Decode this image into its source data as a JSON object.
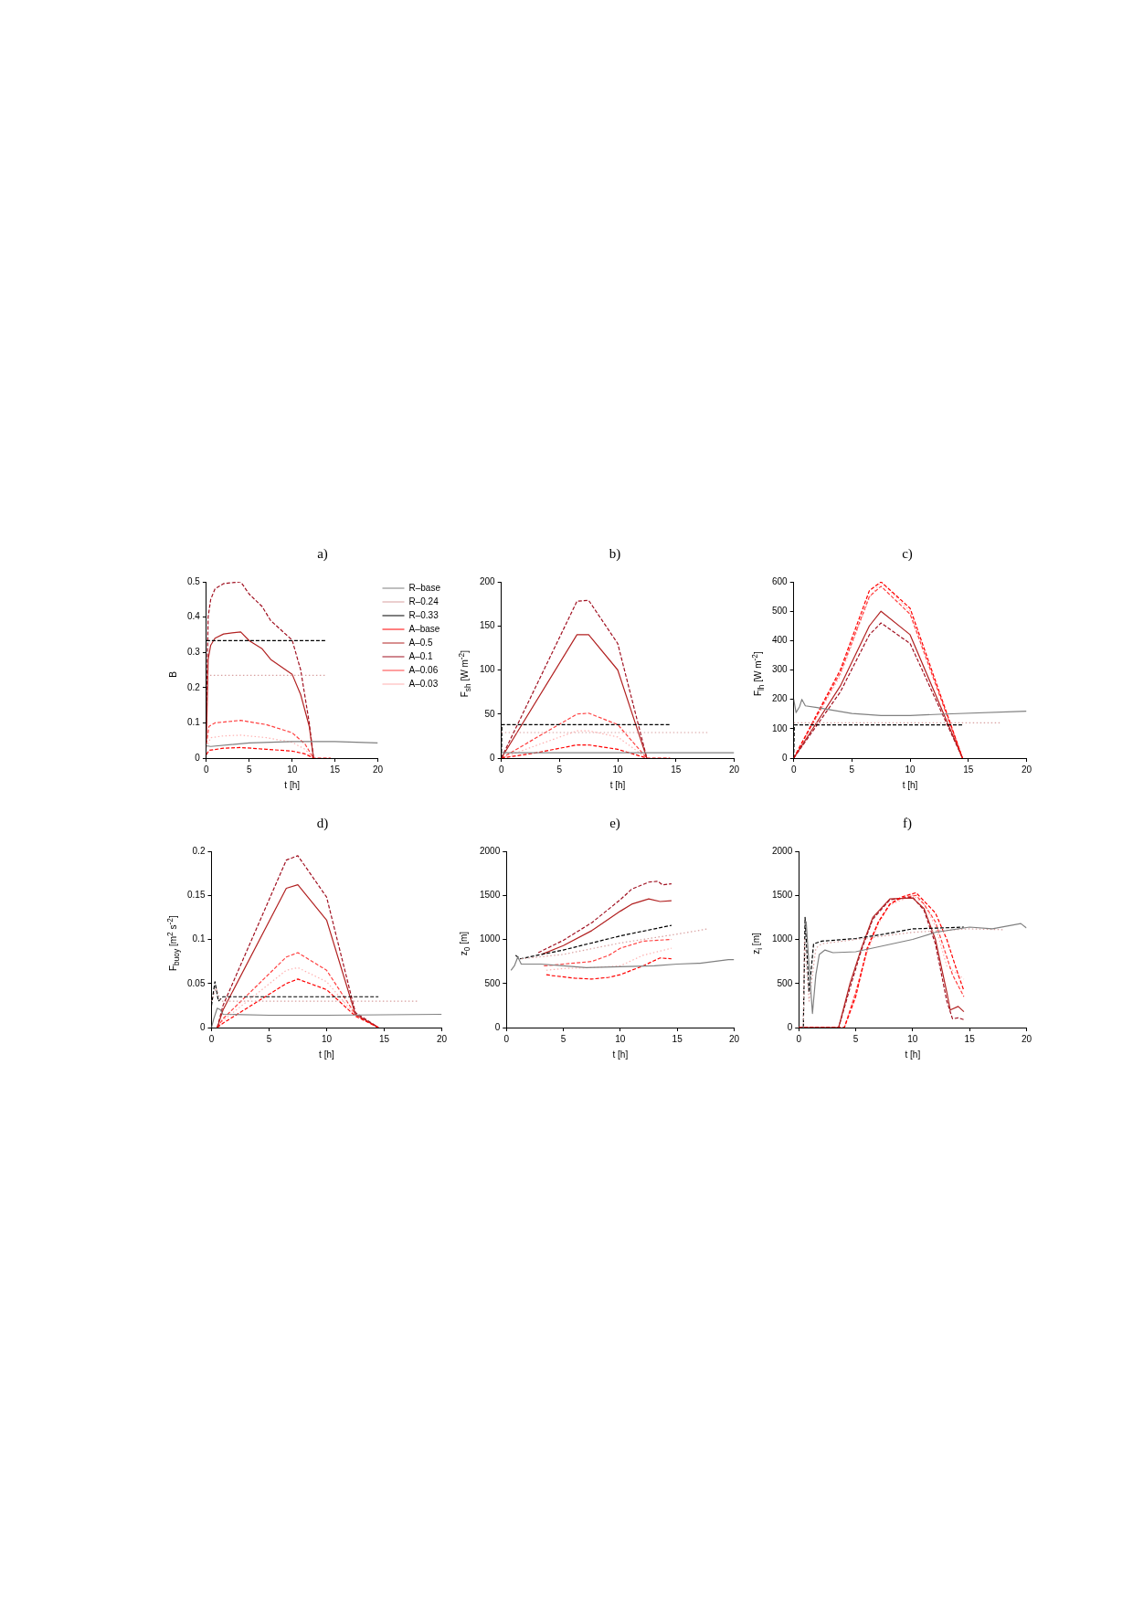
{
  "chart_data": [
    {
      "type": "line",
      "title": "a)",
      "xlabel": "t [h]",
      "ylabel": "B",
      "xlim": [
        0,
        20
      ],
      "xticks": [
        0,
        5,
        10,
        15,
        20
      ],
      "ylim": [
        0,
        0.5
      ],
      "yticks": [
        0,
        0.1,
        0.2,
        0.3,
        0.4,
        0.5
      ],
      "legend": "top right",
      "series": [
        {
          "name": "R–base",
          "color": "#808080",
          "line_style": "solid",
          "x": [
            0,
            0.5,
            5,
            10,
            15,
            20
          ],
          "values": [
            0.035,
            0.033,
            0.043,
            0.047,
            0.047,
            0.043
          ]
        },
        {
          "name": "R–0.24",
          "color": "#d8a0a0",
          "line_style": "dotted",
          "x": [
            0,
            14
          ],
          "values": [
            0.235,
            0.235
          ]
        },
        {
          "name": "R–0.33",
          "color": "#000000",
          "line_style": "dashed",
          "x": [
            0,
            14
          ],
          "values": [
            0.333,
            0.333
          ]
        },
        {
          "name": "A–base",
          "color": "#ff0000",
          "line_style": "dashed",
          "x": [
            0,
            0.3,
            2,
            4,
            7,
            10,
            11.5,
            12.5,
            14.5
          ],
          "values": [
            0.01,
            0.022,
            0.028,
            0.03,
            0.025,
            0.02,
            0.012,
            0,
            0
          ]
        },
        {
          "name": "A–0.5",
          "color": "#b22222",
          "line_style": "solid",
          "x": [
            0,
            0.2,
            0.5,
            1,
            2,
            4,
            5,
            6.5,
            7.5,
            10,
            11,
            12,
            12.5
          ],
          "values": [
            0.05,
            0.28,
            0.32,
            0.34,
            0.352,
            0.358,
            0.333,
            0.31,
            0.28,
            0.238,
            0.18,
            0.09,
            0
          ]
        },
        {
          "name": "A–0.1",
          "color": "#a01020",
          "line_style": "dashed",
          "x": [
            0,
            0.2,
            0.5,
            1,
            2,
            4,
            5,
            6.5,
            7.5,
            10,
            11,
            12,
            12.5
          ],
          "values": [
            0.1,
            0.4,
            0.45,
            0.48,
            0.495,
            0.5,
            0.465,
            0.43,
            0.39,
            0.335,
            0.25,
            0.1,
            0
          ]
        },
        {
          "name": "A–0.06",
          "color": "#ff4040",
          "line_style": "dashed",
          "x": [
            0,
            0.3,
            1,
            4,
            7,
            10,
            11.5,
            12.5
          ],
          "values": [
            0.04,
            0.09,
            0.1,
            0.107,
            0.095,
            0.072,
            0.04,
            0
          ]
        },
        {
          "name": "A–0.03",
          "color": "#ffb0b0",
          "line_style": "dotted",
          "x": [
            0,
            0.5,
            2,
            4,
            7,
            10,
            11.5,
            12.5
          ],
          "values": [
            0.03,
            0.058,
            0.063,
            0.065,
            0.058,
            0.045,
            0.025,
            0
          ]
        }
      ]
    },
    {
      "type": "line",
      "title": "b)",
      "xlabel": "t [h]",
      "ylabel": "F$_{sh}$  [W m$^{-2}$]",
      "xlim": [
        0,
        20
      ],
      "xticks": [
        0,
        5,
        10,
        15,
        20
      ],
      "ylim": [
        0,
        200
      ],
      "yticks": [
        0,
        50,
        100,
        150,
        200
      ],
      "series": [
        {
          "color": "#808080",
          "line_style": "solid",
          "x": [
            0,
            20
          ],
          "values": [
            6,
            6
          ]
        },
        {
          "color": "#d8a0a0",
          "line_style": "dotted",
          "x": [
            0,
            17.7
          ],
          "values": [
            29,
            29
          ]
        },
        {
          "color": "#000000",
          "line_style": "dashed",
          "x": [
            0,
            0.05,
            14.5
          ],
          "values": [
            0,
            38,
            38
          ]
        },
        {
          "color": "#ff0000",
          "line_style": "dashed",
          "x": [
            0,
            3,
            6.5,
            7.5,
            10,
            12.5,
            14.5
          ],
          "values": [
            0,
            6,
            15,
            15,
            10,
            0,
            0
          ]
        },
        {
          "color": "#b22222",
          "line_style": "solid",
          "x": [
            0,
            6.5,
            7.5,
            10,
            12.5
          ],
          "values": [
            0,
            140,
            140,
            100,
            0
          ]
        },
        {
          "color": "#a01020",
          "line_style": "dashed",
          "x": [
            0,
            6.5,
            7.5,
            10,
            12.5
          ],
          "values": [
            0,
            178,
            179,
            130,
            0
          ]
        },
        {
          "color": "#ff4040",
          "line_style": "dashed",
          "x": [
            0,
            6.5,
            7.5,
            10,
            12.5
          ],
          "values": [
            0,
            50,
            51,
            38,
            0
          ]
        },
        {
          "color": "#ffb0b0",
          "line_style": "dotted",
          "x": [
            0,
            6.5,
            7.5,
            10,
            12.5
          ],
          "values": [
            0,
            31,
            31,
            24,
            0
          ]
        }
      ]
    },
    {
      "type": "line",
      "title": "c)",
      "xlabel": "t [h]",
      "ylabel": "F$_{lh}$  [W m$^{-2}$]",
      "xlim": [
        0,
        20
      ],
      "xticks": [
        0,
        5,
        10,
        15,
        20
      ],
      "ylim": [
        0,
        600
      ],
      "yticks": [
        0,
        100,
        200,
        300,
        400,
        500,
        600
      ],
      "series": [
        {
          "color": "#808080",
          "line_style": "solid",
          "x": [
            0,
            0.2,
            0.5,
            0.7,
            1,
            2,
            5,
            7.5,
            10,
            13,
            20
          ],
          "values": [
            200,
            155,
            175,
            200,
            178,
            172,
            152,
            145,
            145,
            150,
            160
          ]
        },
        {
          "color": "#d8a0a0",
          "line_style": "dotted",
          "x": [
            0,
            17.7
          ],
          "values": [
            120,
            120
          ]
        },
        {
          "color": "#000000",
          "line_style": "dashed",
          "x": [
            0,
            0.05,
            14.5
          ],
          "values": [
            0,
            113,
            113
          ]
        },
        {
          "color": "#ff0000",
          "line_style": "dashed",
          "x": [
            0,
            4,
            6.5,
            7.5,
            10,
            14.5
          ],
          "values": [
            0,
            300,
            570,
            600,
            510,
            0
          ]
        },
        {
          "color": "#b22222",
          "line_style": "solid",
          "x": [
            0,
            4,
            6.5,
            7.5,
            10,
            14.5
          ],
          "values": [
            0,
            245,
            450,
            500,
            420,
            0
          ]
        },
        {
          "color": "#a01020",
          "line_style": "dashed",
          "x": [
            0,
            4,
            6.5,
            7.5,
            10,
            14.5
          ],
          "values": [
            0,
            225,
            420,
            460,
            390,
            0
          ]
        },
        {
          "color": "#ff4040",
          "line_style": "dashed",
          "x": [
            0,
            4,
            6.5,
            7.5,
            10,
            14.5
          ],
          "values": [
            0,
            290,
            550,
            585,
            490,
            0
          ]
        },
        {
          "color": "#ffb0b0",
          "line_style": "dotted",
          "x": [
            0,
            4,
            6.5,
            7.5,
            10,
            14.5
          ],
          "values": [
            0,
            280,
            545,
            600,
            500,
            0
          ]
        }
      ]
    },
    {
      "type": "line",
      "title": "d)",
      "xlabel": "t [h]",
      "ylabel": "F$_{buoy}$  [m$^{2}$ s$^{-2}$]",
      "xlim": [
        0,
        20
      ],
      "xticks": [
        0,
        5,
        10,
        15,
        20
      ],
      "ylim": [
        0,
        0.2
      ],
      "yticks": [
        0,
        0.05,
        0.1,
        0.15,
        0.2
      ],
      "series": [
        {
          "color": "#808080",
          "line_style": "solid",
          "x": [
            0,
            0.2,
            0.5,
            0.8,
            1,
            5,
            10,
            20
          ],
          "values": [
            0,
            0.01,
            0.022,
            0.02,
            0.015,
            0.014,
            0.014,
            0.015
          ]
        },
        {
          "color": "#d8a0a0",
          "line_style": "dotted",
          "x": [
            0,
            0.4,
            0.8,
            18
          ],
          "values": [
            0.03,
            0.045,
            0.03,
            0.03
          ]
        },
        {
          "color": "#000000",
          "line_style": "dashed",
          "x": [
            0,
            0.3,
            0.6,
            1,
            14.5
          ],
          "values": [
            0.025,
            0.052,
            0.03,
            0.035,
            0.035
          ]
        },
        {
          "color": "#ff0000",
          "line_style": "dashed",
          "x": [
            0.5,
            1,
            6.5,
            7.5,
            10,
            12.5,
            14.5
          ],
          "values": [
            0,
            0.005,
            0.05,
            0.055,
            0.043,
            0.013,
            0
          ]
        },
        {
          "color": "#b22222",
          "line_style": "solid",
          "x": [
            0.5,
            1,
            6.5,
            7.5,
            10,
            12.5,
            14.5
          ],
          "values": [
            0,
            0.02,
            0.158,
            0.162,
            0.122,
            0.015,
            0
          ]
        },
        {
          "color": "#a01020",
          "line_style": "dashed",
          "x": [
            0.5,
            1,
            6.5,
            7.5,
            10,
            12.5,
            14.5
          ],
          "values": [
            0,
            0.025,
            0.19,
            0.195,
            0.148,
            0.017,
            0
          ]
        },
        {
          "color": "#ff4040",
          "line_style": "dashed",
          "x": [
            0.5,
            1,
            6.5,
            7.5,
            10,
            12.5,
            14.5
          ],
          "values": [
            0,
            0.01,
            0.08,
            0.085,
            0.065,
            0.015,
            0
          ]
        },
        {
          "color": "#ffb0b0",
          "line_style": "dotted",
          "x": [
            0.5,
            1,
            6.5,
            7.5,
            10,
            12.5,
            14.5
          ],
          "values": [
            0,
            0.008,
            0.065,
            0.068,
            0.052,
            0.014,
            0
          ]
        }
      ]
    },
    {
      "type": "line",
      "title": "e)",
      "xlabel": "t [h]",
      "ylabel": "z$_{0}$  [m]",
      "xlim": [
        0,
        20
      ],
      "xticks": [
        0,
        5,
        10,
        15,
        20
      ],
      "ylim": [
        0,
        2000
      ],
      "yticks": [
        0,
        500,
        1000,
        1500,
        2000
      ],
      "series": [
        {
          "color": "#808080",
          "line_style": "solid",
          "x": [
            0.4,
            0.7,
            1,
            1.3,
            3,
            5,
            7,
            10,
            13,
            15,
            17,
            19.5,
            20
          ],
          "values": [
            650,
            700,
            800,
            720,
            720,
            700,
            680,
            690,
            700,
            720,
            730,
            770,
            770
          ]
        },
        {
          "color": "#d8a0a0",
          "line_style": "dotted",
          "x": [
            1.3,
            5,
            10,
            15,
            17.7
          ],
          "values": [
            780,
            830,
            960,
            1060,
            1120
          ]
        },
        {
          "color": "#000000",
          "line_style": "dashed",
          "x": [
            0.8,
            1.2,
            5,
            10,
            14.5
          ],
          "values": [
            820,
            780,
            880,
            1040,
            1160
          ]
        },
        {
          "color": "#ff0000",
          "line_style": "dashed",
          "x": [
            3.5,
            4,
            6,
            7.5,
            9,
            10,
            12,
            13.5,
            14.5
          ],
          "values": [
            600,
            590,
            560,
            550,
            570,
            600,
            700,
            790,
            780
          ]
        },
        {
          "color": "#b22222",
          "line_style": "solid",
          "x": [
            3.1,
            5,
            7.5,
            10,
            11,
            12.5,
            13.5,
            14.5
          ],
          "values": [
            830,
            930,
            1100,
            1320,
            1400,
            1460,
            1430,
            1440
          ]
        },
        {
          "color": "#a01020",
          "line_style": "dashed",
          "x": [
            2.8,
            5,
            7.5,
            10,
            11,
            12.5,
            13.3,
            13.7,
            14.5
          ],
          "values": [
            850,
            990,
            1190,
            1450,
            1570,
            1650,
            1660,
            1620,
            1630
          ]
        },
        {
          "color": "#ff4040",
          "line_style": "dashed",
          "x": [
            3.3,
            5,
            7.5,
            9,
            10,
            12,
            14.5
          ],
          "values": [
            700,
            720,
            750,
            820,
            900,
            980,
            1000
          ]
        },
        {
          "color": "#ffb0b0",
          "line_style": "dotted",
          "x": [
            3.5,
            5,
            7.5,
            10,
            12,
            14.5
          ],
          "values": [
            650,
            670,
            680,
            700,
            820,
            900
          ]
        }
      ]
    },
    {
      "type": "line",
      "title": "f)",
      "xlabel": "t [h]",
      "ylabel": "z$_{i}$  [m]",
      "xlim": [
        0,
        20
      ],
      "xticks": [
        0,
        5,
        10,
        15,
        20
      ],
      "ylim": [
        0,
        2000
      ],
      "yticks": [
        0,
        500,
        1000,
        1500,
        2000
      ],
      "series": [
        {
          "color": "#808080",
          "line_style": "solid",
          "x": [
            0.5,
            0.65,
            0.9,
            1.2,
            1.5,
            1.8,
            2.3,
            3,
            5,
            7.5,
            10,
            12,
            15,
            17,
            19.5,
            20
          ],
          "values": [
            1150,
            1200,
            700,
            160,
            600,
            830,
            880,
            850,
            860,
            930,
            1000,
            1080,
            1140,
            1120,
            1180,
            1130
          ]
        },
        {
          "color": "#d8a0a0",
          "line_style": "dotted",
          "x": [
            0.4,
            0.5,
            0.9,
            1.5,
            2,
            5,
            10,
            15,
            18
          ],
          "values": [
            0,
            1000,
            300,
            900,
            950,
            1000,
            1080,
            1120,
            1110
          ]
        },
        {
          "color": "#000000",
          "line_style": "dashed",
          "x": [
            0.4,
            0.55,
            0.9,
            1.3,
            2,
            5,
            7.5,
            10,
            12.5,
            14.5
          ],
          "values": [
            0,
            1250,
            400,
            950,
            980,
            1010,
            1060,
            1120,
            1130,
            1140
          ]
        },
        {
          "color": "#ff0000",
          "line_style": "dashed",
          "x": [
            0,
            4,
            5,
            6,
            7,
            8,
            9,
            10.3,
            12,
            13,
            14,
            14.5
          ],
          "values": [
            0,
            0,
            350,
            900,
            1200,
            1400,
            1480,
            1530,
            1300,
            1000,
            600,
            420
          ]
        },
        {
          "color": "#b22222",
          "line_style": "solid",
          "x": [
            0,
            3.5,
            4.5,
            5.5,
            6.5,
            8,
            10,
            11,
            12,
            13,
            13.3,
            14,
            14.5
          ],
          "values": [
            0,
            0,
            500,
            900,
            1250,
            1460,
            1470,
            1350,
            1000,
            400,
            200,
            240,
            180
          ]
        },
        {
          "color": "#a01020",
          "line_style": "dashed",
          "x": [
            0,
            3.5,
            4.5,
            5.5,
            6.5,
            8,
            10,
            11,
            12,
            13,
            13.5,
            14,
            14.5
          ],
          "values": [
            0,
            0,
            450,
            880,
            1230,
            1450,
            1480,
            1330,
            950,
            300,
            100,
            110,
            90
          ]
        },
        {
          "color": "#ff4040",
          "line_style": "dashed",
          "x": [
            0,
            4,
            5,
            6,
            7,
            8,
            9,
            10.3,
            11,
            12,
            13,
            13.5,
            14.5
          ],
          "values": [
            0,
            0,
            400,
            880,
            1200,
            1400,
            1470,
            1500,
            1400,
            1200,
            800,
            600,
            350
          ]
        },
        {
          "color": "#ffb0b0",
          "line_style": "dotted",
          "x": [
            0,
            4,
            5,
            6,
            7,
            8,
            10,
            11,
            12,
            13,
            14.5
          ],
          "values": [
            0,
            0,
            380,
            850,
            1180,
            1390,
            1500,
            1400,
            1150,
            700,
            550
          ]
        }
      ]
    }
  ]
}
